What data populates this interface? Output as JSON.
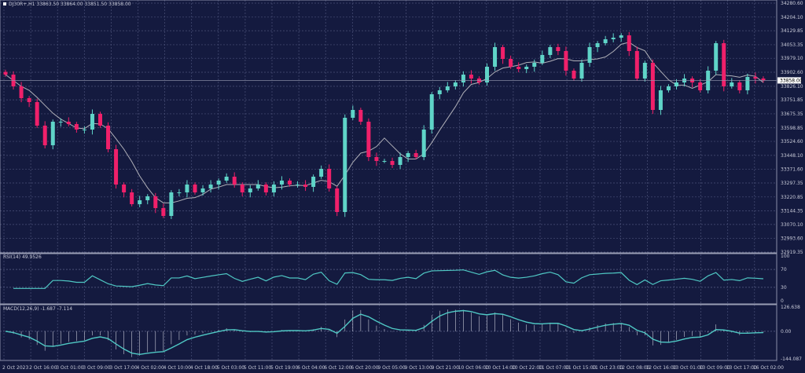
{
  "header": {
    "symbol": "DJ30R+,H1",
    "ohlc": "33863.50 33864.00 33851.50 33858.00"
  },
  "rsi_label": "RSI(14) 49.9526",
  "macd_label": "MACD(12,26,9) -1.687 -7.114",
  "colors": {
    "background": "#141a3f",
    "bull": "#5fd4c8",
    "bear": "#f0206a",
    "ma": "#b0b0b8",
    "indicator": "#4fc8c4",
    "grid": "#4a5078"
  },
  "chart_data": [
    {
      "type": "candlestick",
      "title": "DJ30R+,H1",
      "ylim": [
        32919.35,
        34280.6
      ],
      "current_price": "33858.00",
      "y_ticks": [
        "34280.60",
        "34204.10",
        "34129.85",
        "34053.35",
        "33979.10",
        "33902.60",
        "33826.10",
        "33751.85",
        "33675.35",
        "33598.85",
        "33524.60",
        "33448.10",
        "33371.60",
        "33297.35",
        "33220.85",
        "33144.35",
        "33070.10",
        "32993.60",
        "32919.35"
      ],
      "x_ticks": [
        "2 Oct 2023",
        "2 Oct 16:00",
        "3 Oct 01:00",
        "3 Oct 09:00",
        "3 Oct 17:00",
        "4 Oct 02:00",
        "4 Oct 10:00",
        "4 Oct 18:00",
        "5 Oct 03:00",
        "5 Oct 11:00",
        "5 Oct 19:00",
        "6 Oct 04:00",
        "6 Oct 12:00",
        "6 Oct 20:00",
        "9 Oct 05:00",
        "9 Oct 13:00",
        "9 Oct 21:00",
        "10 Oct 06:00",
        "10 Oct 14:00",
        "10 Oct 22:00",
        "11 Oct 07:00",
        "11 Oct 15:00",
        "11 Oct 23:00",
        "12 Oct 08:00",
        "12 Oct 16:00",
        "13 Oct 01:00",
        "13 Oct 09:00",
        "13 Oct 17:00",
        "16 Oct 02:00"
      ],
      "closes": [
        33889.8,
        33825.4,
        33761.0,
        33739.6,
        33610.7,
        33503.4,
        33632.2,
        33632.2,
        33619.3,
        33589.3,
        33589.3,
        33675.1,
        33610.7,
        33481.9,
        33288.7,
        33245.7,
        33181.3,
        33202.8,
        33224.3,
        33159.9,
        33116.9,
        33245.7,
        33245.7,
        33288.7,
        33245.7,
        33267.2,
        33288.7,
        33310.2,
        33331.6,
        33288.7,
        33245.7,
        33267.2,
        33288.7,
        33245.7,
        33288.7,
        33310.2,
        33288.7,
        33288.7,
        33275.8,
        33331.6,
        33374.6,
        33267.2,
        33138.4,
        33653.7,
        33696.6,
        33632.2,
        33439.0,
        33417.5,
        33417.5,
        33396.0,
        33439.0,
        33460.4,
        33439.0,
        33589.3,
        33782.5,
        33804.0,
        33825.4,
        33846.9,
        33889.8,
        33868.4,
        33846.9,
        33932.8,
        34040.1,
        33975.7,
        33932.8,
        33919.9,
        33932.8,
        33954.3,
        33997.2,
        34040.1,
        34018.7,
        33911.3,
        33868.4,
        33954.3,
        34040.1,
        34061.6,
        34083.1,
        34091.7,
        34104.5,
        34018.7,
        33868.4,
        33954.3,
        33696.6,
        33804.0,
        33825.4,
        33846.9,
        33868.4,
        33846.9,
        33804.0,
        33911.3,
        34061.6,
        33825.4,
        33846.9,
        33804.0,
        33877.0,
        33868.4,
        33858.0
      ]
    },
    {
      "type": "line",
      "title": "RSI(14) 49.9526",
      "ylim": [
        0,
        100
      ],
      "y_ticks": [
        "100",
        "70",
        "30",
        "0"
      ]
    },
    {
      "type": "bar",
      "title": "MACD(12,26,9) -1.687 -7.114",
      "ylim": [
        -144.087,
        126.638
      ],
      "y_ticks": [
        "126.638",
        "0.00",
        "-144.087"
      ]
    }
  ]
}
